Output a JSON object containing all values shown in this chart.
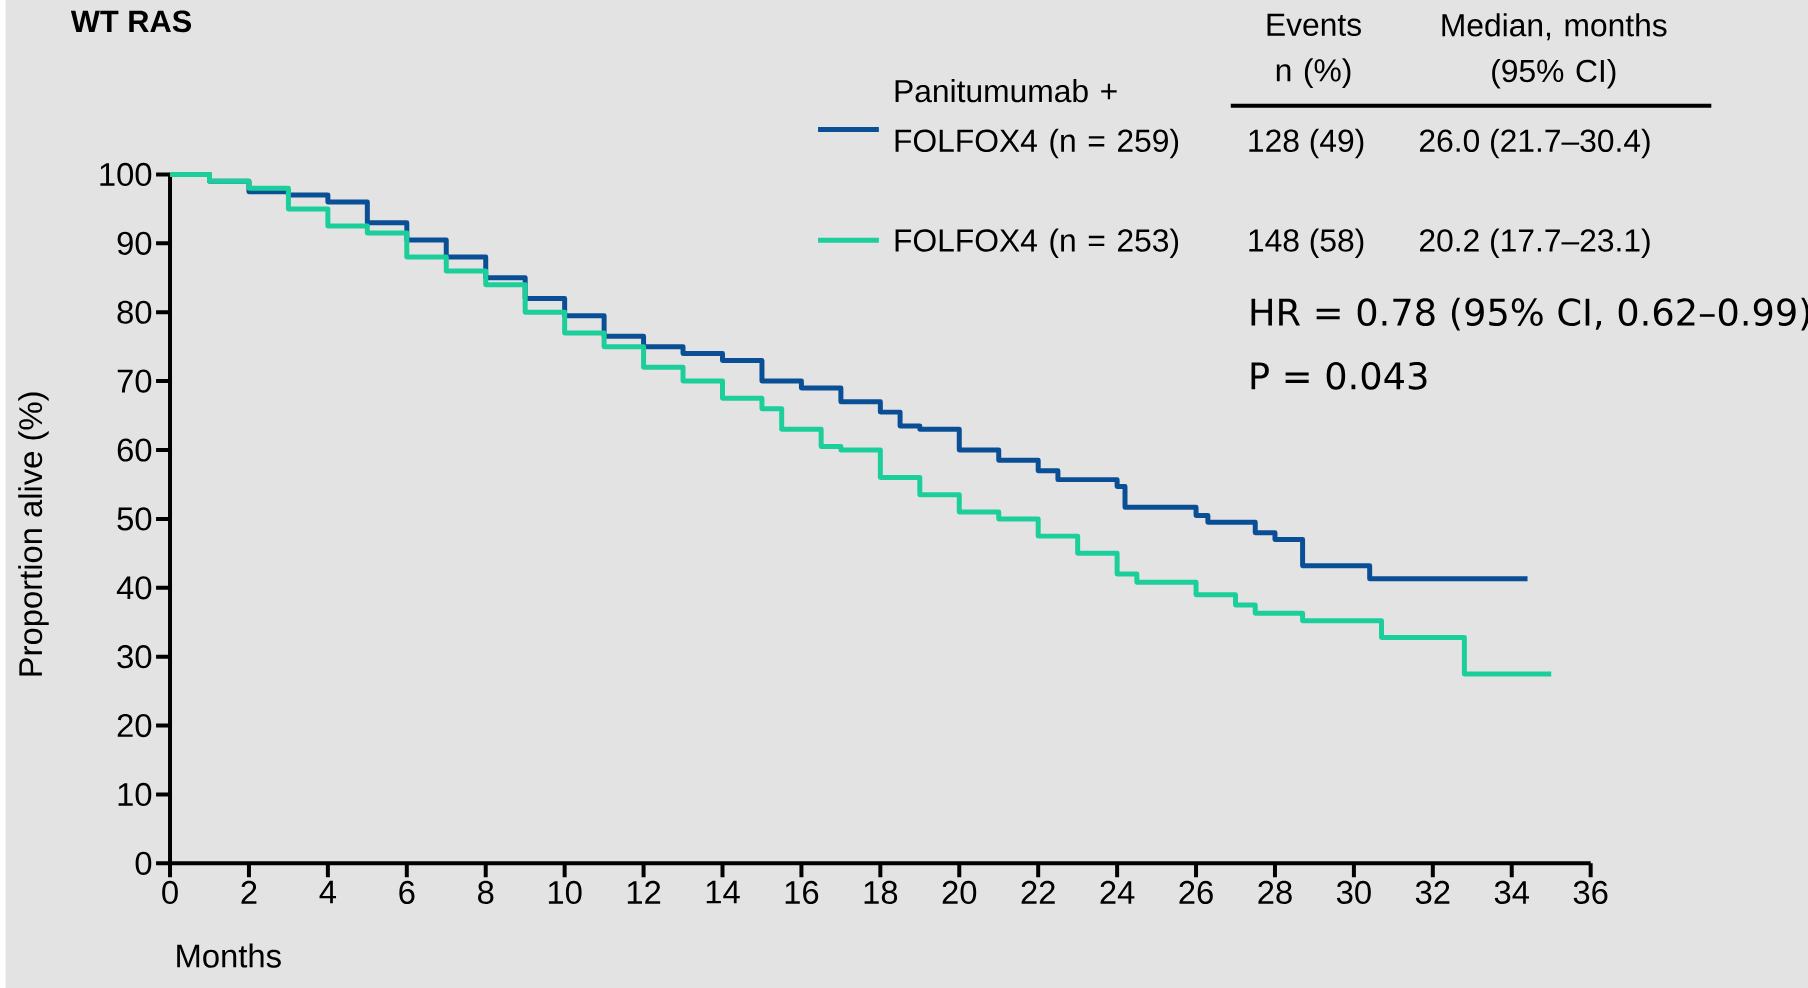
{
  "chart_data": {
    "type": "step",
    "title": "WT RAS",
    "xlabel": "Months",
    "ylabel": "Proportion alive (%)",
    "xlim": [
      0,
      36
    ],
    "ylim": [
      0,
      100
    ],
    "xticks": [
      0,
      2,
      4,
      6,
      8,
      10,
      12,
      14,
      16,
      18,
      20,
      22,
      24,
      26,
      28,
      30,
      32,
      34,
      36
    ],
    "yticks": [
      0,
      10,
      20,
      30,
      40,
      50,
      60,
      70,
      80,
      90,
      100
    ],
    "grid": false,
    "legend": "top right",
    "series": [
      {
        "name": "Panitumumab + FOLFOX4 (n = 259)",
        "color": "#0a4f96",
        "x": [
          0,
          1,
          2,
          3,
          4,
          5,
          6,
          7,
          8,
          9,
          10,
          11,
          12,
          13,
          14,
          15,
          16,
          17,
          18,
          18.5,
          19,
          20,
          21,
          22,
          22.5,
          24,
          24.2,
          26,
          26.3,
          27.5,
          28,
          28.7,
          30.4,
          34.4
        ],
        "values": [
          100,
          99,
          97.5,
          97,
          96,
          93,
          90.5,
          88,
          85,
          82,
          79.5,
          76.5,
          75,
          74,
          73,
          70,
          69,
          67,
          65.5,
          63.5,
          63,
          60,
          58.5,
          57,
          55.7,
          54.7,
          51.7,
          50.5,
          49.5,
          48,
          47,
          43.2,
          41.3,
          41.3
        ]
      },
      {
        "name": "FOLFOX4 (n = 253)",
        "color": "#1ccf9a",
        "x": [
          0,
          1,
          2,
          3,
          4,
          5,
          6,
          7,
          8,
          9,
          10,
          11,
          12,
          13,
          14,
          15,
          15.5,
          16.5,
          17,
          18,
          19,
          20,
          21,
          22,
          23,
          24,
          24.5,
          26,
          27,
          27.5,
          28.7,
          30.7,
          32.8,
          35.0
        ],
        "values": [
          100,
          99,
          98,
          95,
          92.5,
          91.5,
          88,
          86,
          84,
          80,
          77,
          75,
          72,
          70,
          67.5,
          66,
          63,
          60.5,
          60,
          56,
          53.5,
          51,
          50,
          47.5,
          45,
          42,
          40.8,
          39,
          37.5,
          36.3,
          35.2,
          32.8,
          27.5,
          27.5
        ]
      }
    ],
    "annotations": [
      "Events n (%)",
      "Median, months (95% CI)",
      "128 (49)",
      "26.0 (21.7–30.4)",
      "148 (58)",
      "20.2 (17.7–23.1)",
      "HR = 0.78 (95% CI, 0.62–0.99)",
      "P = 0.043"
    ]
  }
}
